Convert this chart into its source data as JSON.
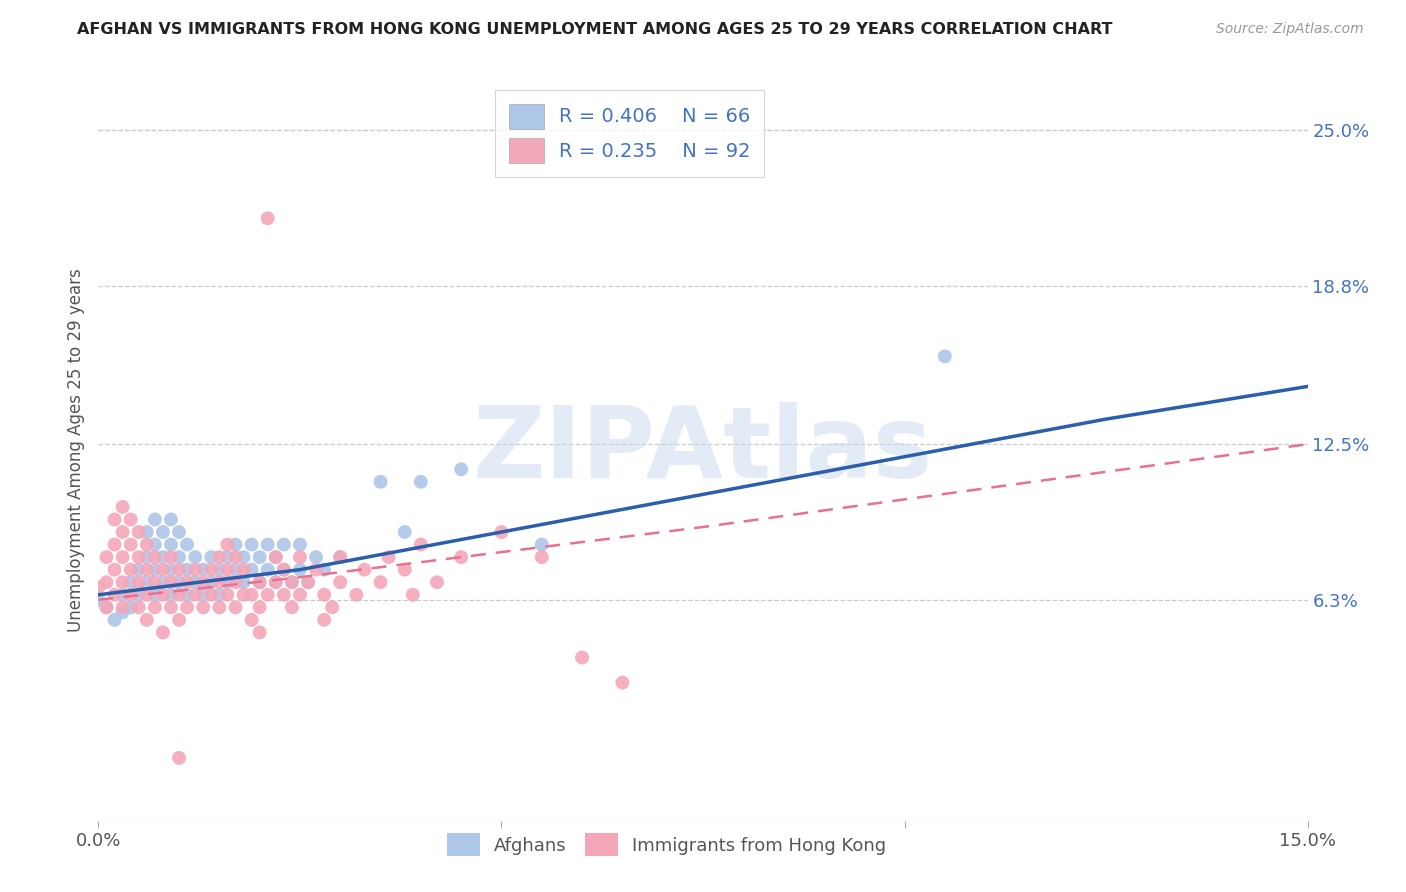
{
  "title": "AFGHAN VS IMMIGRANTS FROM HONG KONG UNEMPLOYMENT AMONG AGES 25 TO 29 YEARS CORRELATION CHART",
  "source": "Source: ZipAtlas.com",
  "ylabel": "Unemployment Among Ages 25 to 29 years",
  "xlim": [
    0.0,
    0.15
  ],
  "ylim": [
    -0.025,
    0.27
  ],
  "y_tick_labels_right": [
    "6.3%",
    "12.5%",
    "18.8%",
    "25.0%"
  ],
  "y_tick_values_right": [
    0.063,
    0.125,
    0.188,
    0.25
  ],
  "afghan_color": "#AEC6E8",
  "hk_color": "#F4A7B9",
  "afghan_line_color": "#2B5EAB",
  "hk_line_color": "#E87090",
  "background_color": "#FFFFFF",
  "grid_color": "#CCCCCC",
  "watermark": "ZIPAtlas",
  "afghan_scatter": [
    [
      0.0,
      0.063
    ],
    [
      0.001,
      0.06
    ],
    [
      0.002,
      0.055
    ],
    [
      0.003,
      0.058
    ],
    [
      0.003,
      0.065
    ],
    [
      0.004,
      0.06
    ],
    [
      0.004,
      0.07
    ],
    [
      0.005,
      0.065
    ],
    [
      0.005,
      0.075
    ],
    [
      0.006,
      0.07
    ],
    [
      0.006,
      0.08
    ],
    [
      0.006,
      0.09
    ],
    [
      0.007,
      0.065
    ],
    [
      0.007,
      0.075
    ],
    [
      0.007,
      0.085
    ],
    [
      0.007,
      0.095
    ],
    [
      0.008,
      0.07
    ],
    [
      0.008,
      0.08
    ],
    [
      0.008,
      0.09
    ],
    [
      0.009,
      0.065
    ],
    [
      0.009,
      0.075
    ],
    [
      0.009,
      0.085
    ],
    [
      0.009,
      0.095
    ],
    [
      0.01,
      0.07
    ],
    [
      0.01,
      0.08
    ],
    [
      0.01,
      0.09
    ],
    [
      0.011,
      0.065
    ],
    [
      0.011,
      0.075
    ],
    [
      0.011,
      0.085
    ],
    [
      0.012,
      0.07
    ],
    [
      0.012,
      0.08
    ],
    [
      0.013,
      0.065
    ],
    [
      0.013,
      0.075
    ],
    [
      0.014,
      0.07
    ],
    [
      0.014,
      0.08
    ],
    [
      0.015,
      0.065
    ],
    [
      0.015,
      0.075
    ],
    [
      0.016,
      0.07
    ],
    [
      0.016,
      0.08
    ],
    [
      0.017,
      0.075
    ],
    [
      0.017,
      0.085
    ],
    [
      0.018,
      0.07
    ],
    [
      0.018,
      0.08
    ],
    [
      0.019,
      0.075
    ],
    [
      0.019,
      0.085
    ],
    [
      0.02,
      0.07
    ],
    [
      0.02,
      0.08
    ],
    [
      0.021,
      0.075
    ],
    [
      0.021,
      0.085
    ],
    [
      0.022,
      0.07
    ],
    [
      0.022,
      0.08
    ],
    [
      0.023,
      0.075
    ],
    [
      0.023,
      0.085
    ],
    [
      0.024,
      0.07
    ],
    [
      0.025,
      0.075
    ],
    [
      0.025,
      0.085
    ],
    [
      0.026,
      0.07
    ],
    [
      0.027,
      0.08
    ],
    [
      0.028,
      0.075
    ],
    [
      0.03,
      0.08
    ],
    [
      0.035,
      0.11
    ],
    [
      0.038,
      0.09
    ],
    [
      0.04,
      0.11
    ],
    [
      0.045,
      0.115
    ],
    [
      0.055,
      0.085
    ],
    [
      0.105,
      0.16
    ]
  ],
  "hk_scatter": [
    [
      0.0,
      0.068
    ],
    [
      0.001,
      0.06
    ],
    [
      0.001,
      0.07
    ],
    [
      0.001,
      0.08
    ],
    [
      0.002,
      0.065
    ],
    [
      0.002,
      0.075
    ],
    [
      0.002,
      0.085
    ],
    [
      0.002,
      0.095
    ],
    [
      0.003,
      0.06
    ],
    [
      0.003,
      0.07
    ],
    [
      0.003,
      0.08
    ],
    [
      0.003,
      0.09
    ],
    [
      0.003,
      0.1
    ],
    [
      0.004,
      0.065
    ],
    [
      0.004,
      0.075
    ],
    [
      0.004,
      0.085
    ],
    [
      0.004,
      0.095
    ],
    [
      0.005,
      0.06
    ],
    [
      0.005,
      0.07
    ],
    [
      0.005,
      0.08
    ],
    [
      0.005,
      0.09
    ],
    [
      0.006,
      0.065
    ],
    [
      0.006,
      0.075
    ],
    [
      0.006,
      0.085
    ],
    [
      0.006,
      0.055
    ],
    [
      0.007,
      0.06
    ],
    [
      0.007,
      0.07
    ],
    [
      0.007,
      0.08
    ],
    [
      0.008,
      0.065
    ],
    [
      0.008,
      0.075
    ],
    [
      0.008,
      0.05
    ],
    [
      0.009,
      0.06
    ],
    [
      0.009,
      0.07
    ],
    [
      0.009,
      0.08
    ],
    [
      0.01,
      0.055
    ],
    [
      0.01,
      0.065
    ],
    [
      0.01,
      0.075
    ],
    [
      0.011,
      0.06
    ],
    [
      0.011,
      0.07
    ],
    [
      0.012,
      0.065
    ],
    [
      0.012,
      0.075
    ],
    [
      0.013,
      0.06
    ],
    [
      0.013,
      0.07
    ],
    [
      0.014,
      0.065
    ],
    [
      0.014,
      0.075
    ],
    [
      0.015,
      0.06
    ],
    [
      0.015,
      0.07
    ],
    [
      0.015,
      0.08
    ],
    [
      0.016,
      0.065
    ],
    [
      0.016,
      0.075
    ],
    [
      0.016,
      0.085
    ],
    [
      0.017,
      0.06
    ],
    [
      0.017,
      0.07
    ],
    [
      0.017,
      0.08
    ],
    [
      0.018,
      0.065
    ],
    [
      0.018,
      0.075
    ],
    [
      0.019,
      0.055
    ],
    [
      0.019,
      0.065
    ],
    [
      0.02,
      0.06
    ],
    [
      0.02,
      0.07
    ],
    [
      0.02,
      0.05
    ],
    [
      0.021,
      0.065
    ],
    [
      0.021,
      0.215
    ],
    [
      0.022,
      0.07
    ],
    [
      0.022,
      0.08
    ],
    [
      0.023,
      0.065
    ],
    [
      0.023,
      0.075
    ],
    [
      0.024,
      0.06
    ],
    [
      0.024,
      0.07
    ],
    [
      0.025,
      0.065
    ],
    [
      0.025,
      0.08
    ],
    [
      0.026,
      0.07
    ],
    [
      0.027,
      0.075
    ],
    [
      0.028,
      0.065
    ],
    [
      0.028,
      0.055
    ],
    [
      0.029,
      0.06
    ],
    [
      0.03,
      0.07
    ],
    [
      0.03,
      0.08
    ],
    [
      0.032,
      0.065
    ],
    [
      0.033,
      0.075
    ],
    [
      0.035,
      0.07
    ],
    [
      0.036,
      0.08
    ],
    [
      0.038,
      0.075
    ],
    [
      0.039,
      0.065
    ],
    [
      0.04,
      0.085
    ],
    [
      0.042,
      0.07
    ],
    [
      0.045,
      0.08
    ],
    [
      0.05,
      0.09
    ],
    [
      0.055,
      0.08
    ],
    [
      0.06,
      0.04
    ],
    [
      0.065,
      0.03
    ],
    [
      0.01,
      0.0
    ]
  ],
  "afghan_reg_x": [
    0.0,
    0.025,
    0.05,
    0.075,
    0.1,
    0.125,
    0.15
  ],
  "afghan_reg_y": [
    0.065,
    0.075,
    0.09,
    0.105,
    0.12,
    0.135,
    0.148
  ],
  "hk_reg_x": [
    0.0,
    0.025,
    0.05,
    0.075,
    0.1,
    0.125,
    0.15
  ],
  "hk_reg_y": [
    0.063,
    0.072,
    0.082,
    0.092,
    0.103,
    0.114,
    0.125
  ]
}
